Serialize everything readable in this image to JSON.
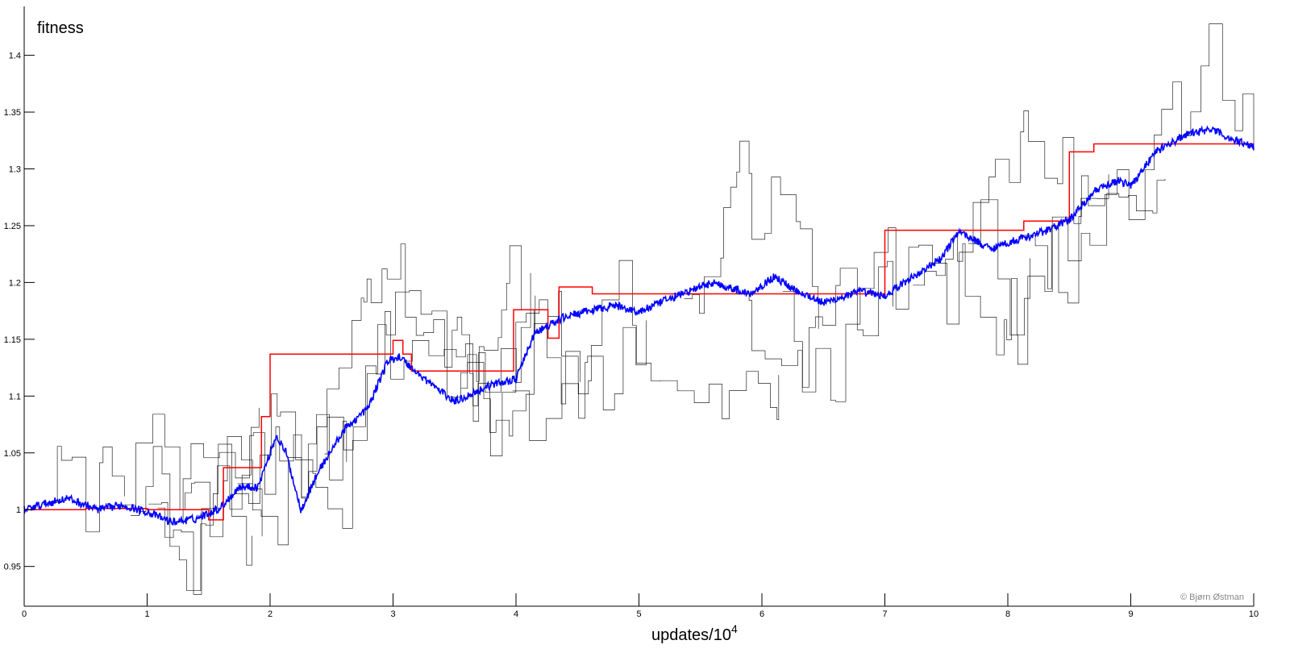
{
  "chart_data": {
    "type": "line",
    "ylabel": "fitness",
    "xlabel": "updates/10",
    "xlabel_exponent": "4",
    "credit": "© Bjørn Østman",
    "xlim": [
      0,
      10
    ],
    "ylim": [
      0.915,
      1.443
    ],
    "x_ticks": [
      0,
      1,
      2,
      3,
      4,
      5,
      6,
      7,
      8,
      9,
      10
    ],
    "y_ticks": [
      0.95,
      1,
      1.05,
      1.1,
      1.15,
      1.2,
      1.25,
      1.3,
      1.35,
      1.4
    ],
    "y_tick_labels": [
      "0.95",
      "1",
      "1.05",
      "1.1",
      "1.15",
      "1.2",
      "1.25",
      "1.3",
      "1.35",
      "1.4"
    ],
    "grid": false,
    "colors": {
      "lineage": "#ff0000",
      "mean": "#0000ff",
      "population": "#000000"
    },
    "series": [
      {
        "style": "step",
        "color": "#ff0000",
        "x": [
          0,
          0.5,
          1.0,
          1.5,
          1.62,
          1.93,
          2.0,
          3.0,
          3.08,
          3.15,
          3.98,
          4.26,
          4.35,
          4.62,
          7.0,
          8.13,
          8.5,
          8.7,
          10.0
        ],
        "y": [
          1.0,
          1.001,
          1.0,
          0.991,
          1.037,
          1.082,
          1.137,
          1.149,
          1.137,
          1.122,
          1.176,
          1.151,
          1.196,
          1.19,
          1.246,
          1.254,
          1.315,
          1.322,
          1.322
        ]
      },
      {
        "style": "noisy-line",
        "color": "#0000ff",
        "x": [
          0,
          0.2,
          0.35,
          0.6,
          0.8,
          1.0,
          1.2,
          1.4,
          1.6,
          1.75,
          1.9,
          2.05,
          2.13,
          2.25,
          2.4,
          2.6,
          2.8,
          2.95,
          3.05,
          3.2,
          3.5,
          3.8,
          4.0,
          4.15,
          4.4,
          4.8,
          5.0,
          5.3,
          5.6,
          5.9,
          6.1,
          6.25,
          6.5,
          6.8,
          7.0,
          7.2,
          7.45,
          7.6,
          7.85,
          8.0,
          8.3,
          8.5,
          8.7,
          8.9,
          9.0,
          9.2,
          9.45,
          9.65,
          9.85,
          10.0
        ],
        "y": [
          1.0,
          1.006,
          1.01,
          1.0,
          1.004,
          0.998,
          0.989,
          0.992,
          1.002,
          1.02,
          1.02,
          1.065,
          1.05,
          1.0,
          1.035,
          1.07,
          1.09,
          1.13,
          1.135,
          1.12,
          1.095,
          1.11,
          1.115,
          1.155,
          1.17,
          1.18,
          1.174,
          1.188,
          1.2,
          1.19,
          1.205,
          1.195,
          1.182,
          1.192,
          1.188,
          1.203,
          1.22,
          1.245,
          1.23,
          1.235,
          1.245,
          1.255,
          1.28,
          1.29,
          1.285,
          1.315,
          1.33,
          1.335,
          1.325,
          1.32
        ]
      },
      {
        "style": "random-walk",
        "color": "#000000",
        "x_start": 0.0,
        "x_end": 10.0,
        "count": 16
      }
    ]
  }
}
